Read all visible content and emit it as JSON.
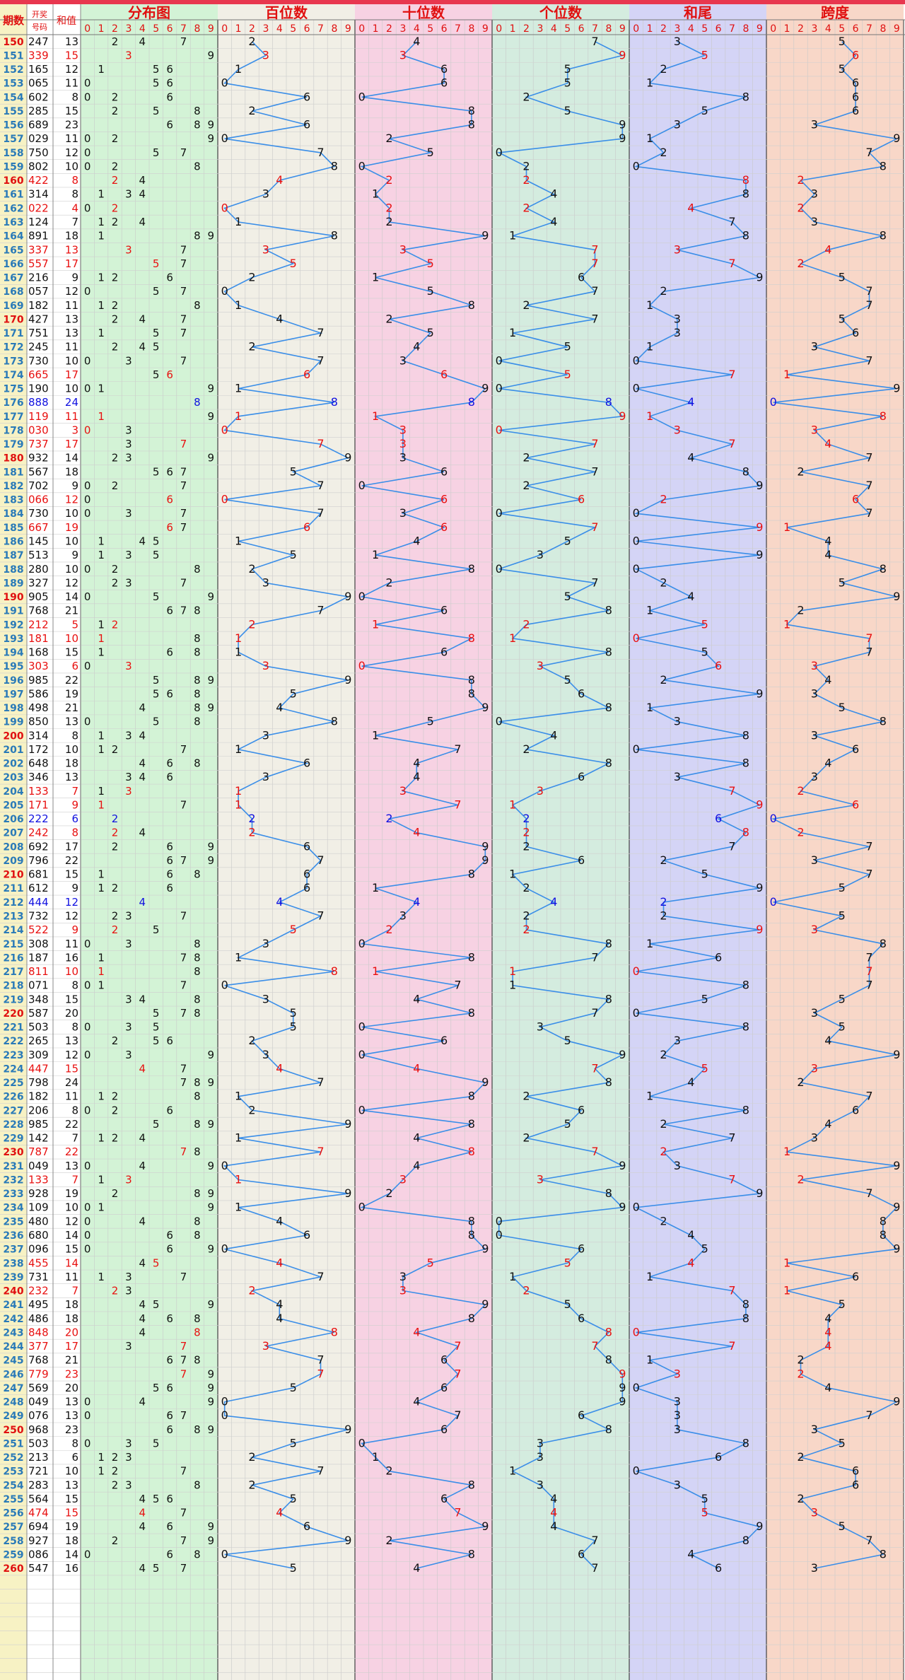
{
  "header": {
    "period_label": "期数",
    "code_label_line1": "开奖",
    "code_label_line2": "号码",
    "sum_label": "和值",
    "sections": [
      "分布图",
      "百位数",
      "十位数",
      "个位数",
      "和尾",
      "跨度"
    ],
    "digits": [
      "0",
      "1",
      "2",
      "3",
      "4",
      "5",
      "6",
      "7",
      "8",
      "9"
    ]
  },
  "colors": {
    "top_bar": "#e8374f",
    "period_blue": "#2a7ab8",
    "period_red": "#e01010",
    "number_red": "#e81010",
    "number_blue": "#1010e0",
    "number_black": "#111111",
    "line": "#3a8ee8",
    "bg_dist": "#d3f3d6",
    "bg_hundreds": "#f1efe6",
    "bg_tens": "#f7d2e3",
    "bg_units": "#d4ecdf",
    "bg_tail": "#d4d4f6",
    "bg_span": "#f8d7c8",
    "bg_left": "#f7f2c4"
  },
  "chart_data": {
    "type": "table",
    "title": "",
    "columns": [
      "期数",
      "开奖号码",
      "和值",
      "分布图",
      "百位数",
      "十位数",
      "个位数",
      "和尾",
      "跨度"
    ],
    "digit_range": [
      0,
      9
    ],
    "periods": [
      "150",
      "151",
      "152",
      "153",
      "154",
      "155",
      "156",
      "157",
      "158",
      "159",
      "160",
      "161",
      "162",
      "163",
      "164",
      "165",
      "166",
      "167",
      "168",
      "169",
      "170",
      "171",
      "172",
      "173",
      "174",
      "175",
      "176",
      "177",
      "178",
      "179",
      "180",
      "181",
      "182",
      "183",
      "184",
      "185",
      "186",
      "187",
      "188",
      "189",
      "190",
      "191",
      "192",
      "193",
      "194",
      "195",
      "196",
      "197",
      "198",
      "199",
      "200",
      "201",
      "202",
      "203",
      "204",
      "205",
      "206",
      "207",
      "208",
      "209",
      "210",
      "211",
      "212",
      "213",
      "214",
      "215",
      "216",
      "217",
      "218",
      "219",
      "220",
      "221",
      "222",
      "223",
      "224",
      "225",
      "226",
      "227",
      "228",
      "229",
      "230",
      "231",
      "232",
      "233",
      "234",
      "235",
      "236",
      "237",
      "238",
      "239",
      "240",
      "241",
      "242",
      "243",
      "244",
      "245",
      "246",
      "247",
      "248",
      "249",
      "250",
      "251",
      "252",
      "253",
      "254",
      "255",
      "256",
      "257",
      "258",
      "259",
      "260"
    ],
    "draws": [
      "247",
      "339",
      "165",
      "065",
      "602",
      "285",
      "689",
      "029",
      "750",
      "802",
      "422",
      "314",
      "022",
      "124",
      "891",
      "337",
      "557",
      "216",
      "057",
      "182",
      "427",
      "751",
      "245",
      "730",
      "665",
      "190",
      "888",
      "119",
      "030",
      "737",
      "932",
      "567",
      "702",
      "066",
      "730",
      "667",
      "145",
      "513",
      "280",
      "327",
      "905",
      "768",
      "212",
      "181",
      "168",
      "303",
      "985",
      "586",
      "498",
      "850",
      "314",
      "172",
      "648",
      "346",
      "133",
      "171",
      "222",
      "242",
      "692",
      "796",
      "681",
      "612",
      "444",
      "732",
      "522",
      "308",
      "187",
      "811",
      "071",
      "348",
      "587",
      "503",
      "265",
      "309",
      "447",
      "798",
      "182",
      "206",
      "985",
      "142",
      "787",
      "049",
      "133",
      "928",
      "109",
      "480",
      "680",
      "096",
      "455",
      "731",
      "232",
      "495",
      "486",
      "848",
      "377",
      "768",
      "779",
      "569",
      "049",
      "076",
      "968",
      "503",
      "213",
      "721",
      "283",
      "564",
      "474",
      "694",
      "927",
      "086",
      "547"
    ],
    "sums": [
      13,
      15,
      12,
      11,
      8,
      15,
      23,
      11,
      12,
      10,
      8,
      8,
      4,
      7,
      18,
      13,
      17,
      9,
      12,
      11,
      13,
      13,
      11,
      10,
      17,
      10,
      24,
      11,
      3,
      17,
      14,
      18,
      9,
      12,
      10,
      19,
      10,
      9,
      10,
      12,
      14,
      21,
      5,
      10,
      15,
      6,
      22,
      19,
      21,
      13,
      8,
      10,
      18,
      13,
      7,
      9,
      6,
      8,
      17,
      22,
      15,
      9,
      12,
      12,
      9,
      11,
      16,
      10,
      8,
      15,
      20,
      8,
      13,
      12,
      15,
      24,
      11,
      8,
      22,
      7,
      22,
      13,
      7,
      19,
      10,
      12,
      14,
      15,
      14,
      11,
      7,
      18,
      18,
      20,
      17,
      21,
      23,
      20,
      13,
      13,
      23,
      8,
      6,
      10,
      13,
      15,
      15,
      19,
      18,
      14,
      16
    ],
    "highlight_rows": [
      "150",
      "160",
      "170",
      "180",
      "190",
      "200",
      "210",
      "220",
      "230",
      "240",
      "250",
      "260"
    ]
  }
}
